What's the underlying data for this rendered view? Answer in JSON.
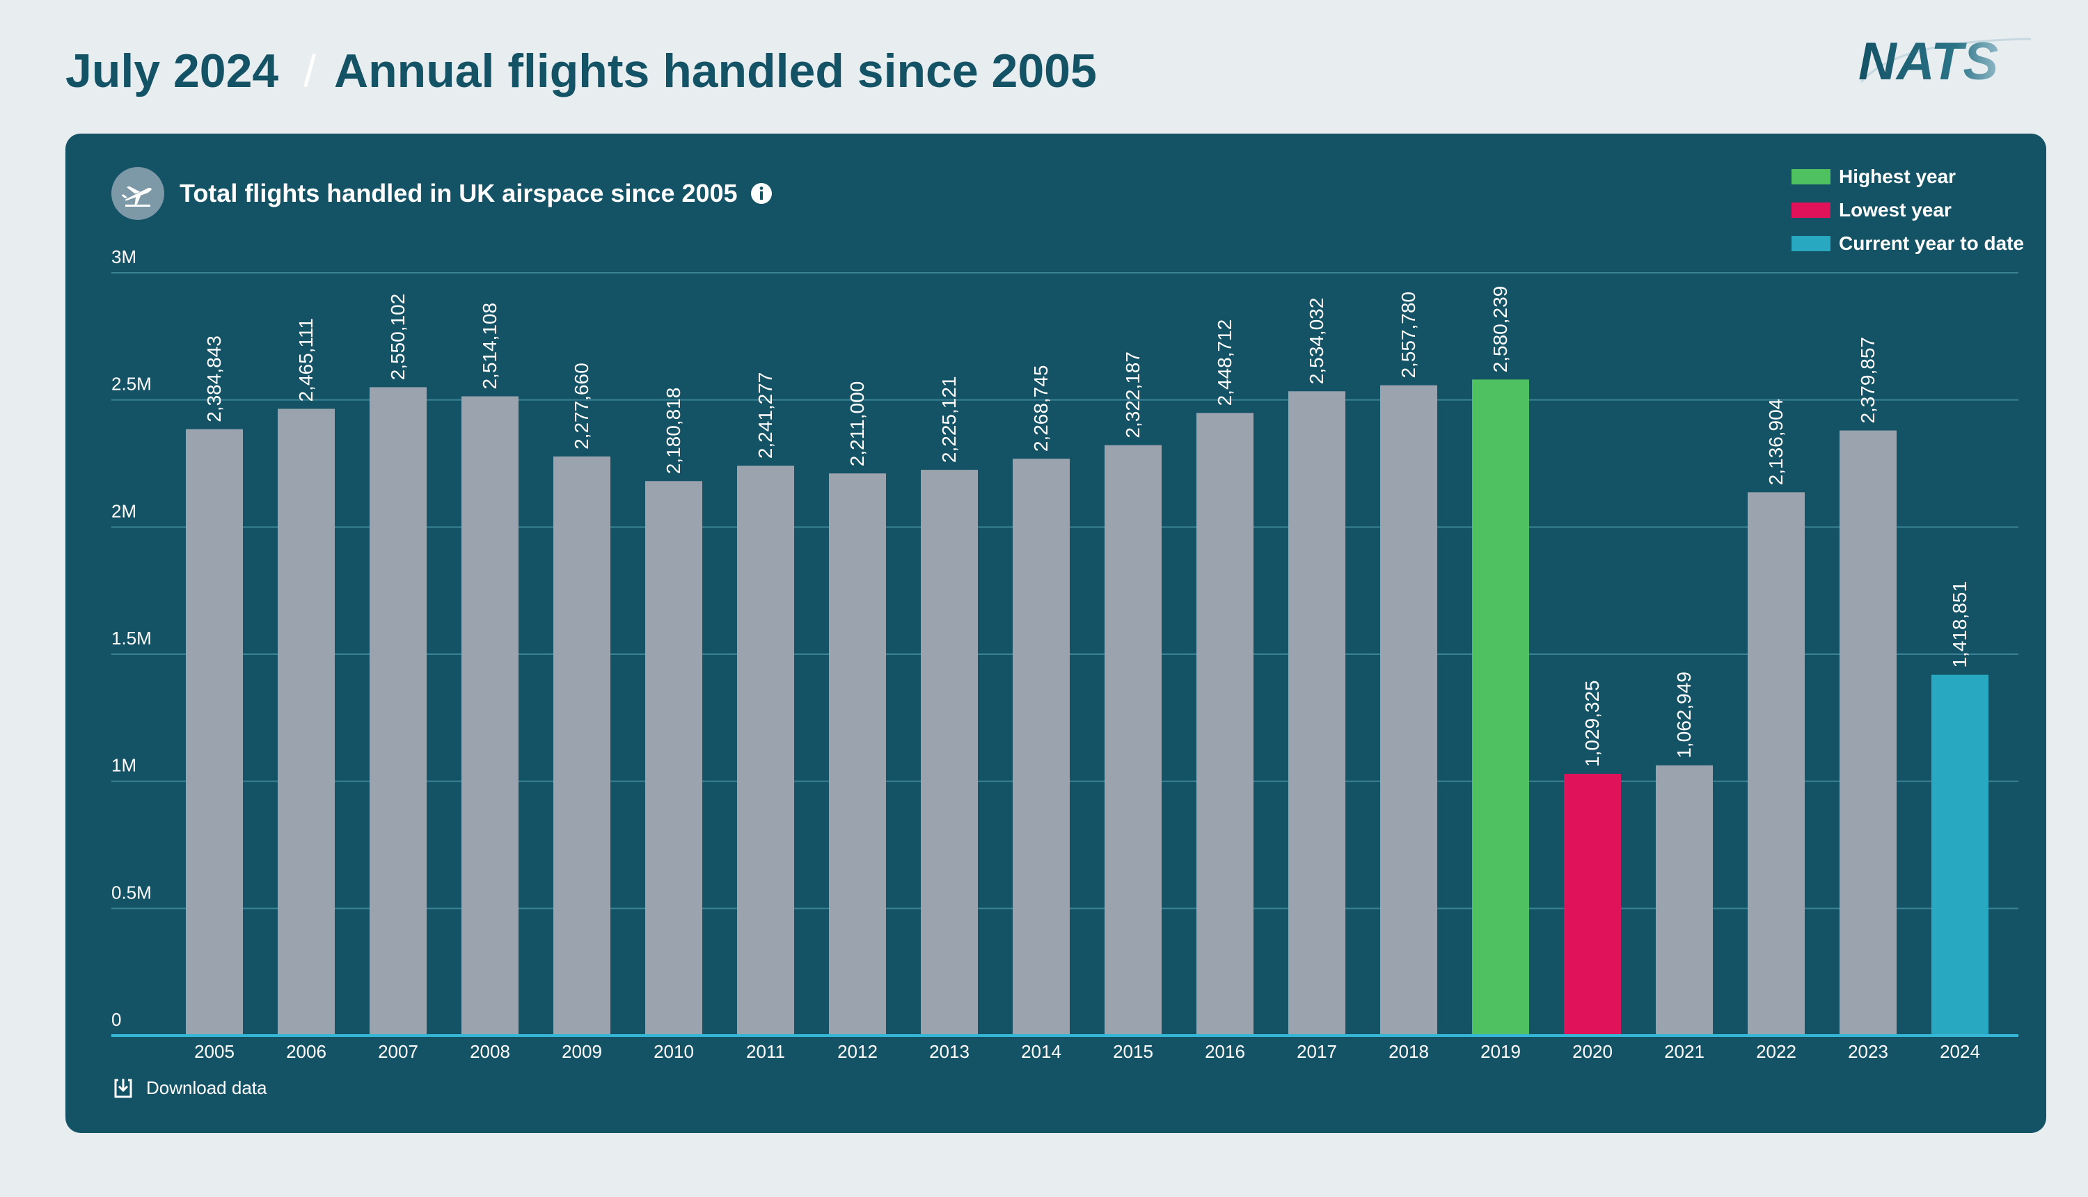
{
  "header": {
    "date": "July 2024",
    "separator": "/",
    "title": "Annual flights handled since 2005",
    "logo": "NATS"
  },
  "card": {
    "title": "Total flights handled in UK airspace since 2005",
    "download_label": "Download data",
    "icons": {
      "badge": "airplane-icon",
      "info": "info-icon",
      "download": "download-icon"
    }
  },
  "legend": [
    {
      "label": "Highest year",
      "color": "#4fc160"
    },
    {
      "label": "Lowest year",
      "color": "#e0125a"
    },
    {
      "label": "Current year to date",
      "color": "#29a8c2"
    }
  ],
  "colors": {
    "default_bar": "#9aa3ae",
    "highest": "#4fc160",
    "lowest": "#e0125a",
    "current": "#29a8c2",
    "card_bg": "#145266",
    "grid": "#3a8296",
    "baseline": "#35b6d4"
  },
  "chart_data": {
    "type": "bar",
    "title": "Total flights handled in UK airspace since 2005",
    "xlabel": "",
    "ylabel": "",
    "ylim": [
      0,
      3000000
    ],
    "y_ticks": [
      0,
      500000,
      1000000,
      1500000,
      2000000,
      2500000,
      3000000
    ],
    "y_tick_labels": [
      "0",
      "0.5M",
      "1M",
      "1.5M",
      "2M",
      "2.5M",
      "3M"
    ],
    "grid": true,
    "legend_position": "top-right",
    "categories": [
      "2005",
      "2006",
      "2007",
      "2008",
      "2009",
      "2010",
      "2011",
      "2012",
      "2013",
      "2014",
      "2015",
      "2016",
      "2017",
      "2018",
      "2019",
      "2020",
      "2021",
      "2022",
      "2023",
      "2024"
    ],
    "values": [
      2384843,
      2465111,
      2550102,
      2514108,
      2277660,
      2180818,
      2241277,
      2211000,
      2225121,
      2268745,
      2322187,
      2448712,
      2534032,
      2557780,
      2580239,
      1029325,
      1062949,
      2136904,
      2379857,
      1418851
    ],
    "value_labels": [
      "2,384,843",
      "2,465,111",
      "2,550,102",
      "2,514,108",
      "2,277,660",
      "2,180,818",
      "2,241,277",
      "2,211,000",
      "2,225,121",
      "2,268,745",
      "2,322,187",
      "2,448,712",
      "2,534,032",
      "2,557,780",
      "2,580,239",
      "1,029,325",
      "1,062,949",
      "2,136,904",
      "2,379,857",
      "1,418,851"
    ],
    "highlights": {
      "2019": "highest",
      "2020": "lowest",
      "2024": "current"
    }
  }
}
